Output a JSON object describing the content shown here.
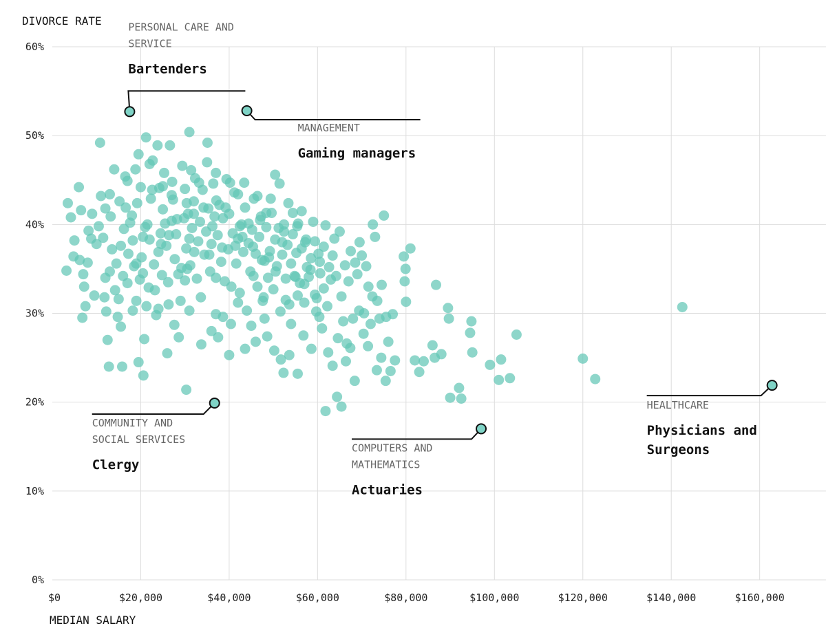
{
  "chart_data": {
    "type": "scatter",
    "ylabel": "DIVORCE RATE",
    "xlabel": "MEDIAN SALARY",
    "xlim": [
      0,
      175000
    ],
    "ylim": [
      0,
      60
    ],
    "x_ticks": [
      0,
      20000,
      40000,
      60000,
      80000,
      100000,
      120000,
      140000,
      160000
    ],
    "x_tick_labels": [
      "$0",
      "$20,000",
      "$40,000",
      "$60,000",
      "$80,000",
      "$100,000",
      "$120,000",
      "$140,000",
      "$160,000"
    ],
    "y_ticks": [
      0,
      10,
      20,
      30,
      40,
      50,
      60
    ],
    "y_tick_labels": [
      "0%",
      "10%",
      "20%",
      "30%",
      "40%",
      "50%",
      "60%"
    ],
    "grid": true,
    "point_color": "#63c6b6",
    "highlight_color": "#7fd3c6",
    "highlights": [
      {
        "category": "PERSONAL CARE AND SERVICE",
        "category_lines": [
          "PERSONAL CARE AND",
          "SERVICE"
        ],
        "name": "Bartenders",
        "name_lines": [
          "Bartenders"
        ],
        "x": 17500,
        "y": 52.7
      },
      {
        "category": "MANAGEMENT",
        "category_lines": [
          "MANAGEMENT"
        ],
        "name": "Gaming managers",
        "name_lines": [
          "Gaming managers"
        ],
        "x": 44000,
        "y": 52.8
      },
      {
        "category": "COMMUNITY AND SOCIAL SERVICES",
        "category_lines": [
          "COMMUNITY AND",
          "SOCIAL SERVICES"
        ],
        "name": "Clergy",
        "name_lines": [
          "Clergy"
        ],
        "x": 36700,
        "y": 19.9
      },
      {
        "category": "COMPUTERS AND MATHEMATICS",
        "category_lines": [
          "COMPUTERS AND",
          "MATHEMATICS"
        ],
        "name": "Actuaries",
        "name_lines": [
          "Actuaries"
        ],
        "x": 97000,
        "y": 17.0
      },
      {
        "category": "HEALTHCARE",
        "category_lines": [
          "HEALTHCARE"
        ],
        "name": "Physicians and Surgeons",
        "name_lines": [
          "Physicians and",
          "Surgeons"
        ],
        "x": 162800,
        "y": 21.9
      }
    ],
    "points": [
      [
        3500,
        42.4
      ],
      [
        4200,
        40.8
      ],
      [
        4800,
        36.4
      ],
      [
        3200,
        34.8
      ],
      [
        5000,
        38.2
      ],
      [
        6000,
        44.2
      ],
      [
        6500,
        41.6
      ],
      [
        7000,
        34.4
      ],
      [
        6800,
        29.5
      ],
      [
        7200,
        33.0
      ],
      [
        7500,
        30.8
      ],
      [
        8000,
        35.7
      ],
      [
        8200,
        39.3
      ],
      [
        9000,
        41.2
      ],
      [
        9500,
        32.0
      ],
      [
        10000,
        37.8
      ],
      [
        10500,
        39.8
      ],
      [
        10800,
        49.2
      ],
      [
        11000,
        43.2
      ],
      [
        11500,
        38.5
      ],
      [
        12000,
        34.0
      ],
      [
        12200,
        30.2
      ],
      [
        12500,
        27.0
      ],
      [
        12800,
        24.0
      ],
      [
        13000,
        43.4
      ],
      [
        13200,
        40.9
      ],
      [
        13500,
        37.2
      ],
      [
        14000,
        46.2
      ],
      [
        14200,
        32.6
      ],
      [
        14500,
        35.6
      ],
      [
        15000,
        31.6
      ],
      [
        15200,
        42.6
      ],
      [
        15500,
        28.5
      ],
      [
        15800,
        24.0
      ],
      [
        16000,
        34.2
      ],
      [
        16200,
        39.5
      ],
      [
        16500,
        45.4
      ],
      [
        17000,
        33.4
      ],
      [
        17200,
        36.7
      ],
      [
        17600,
        40.2
      ],
      [
        18000,
        41.0
      ],
      [
        18200,
        38.2
      ],
      [
        18500,
        35.3
      ],
      [
        19000,
        31.4
      ],
      [
        19200,
        42.4
      ],
      [
        19500,
        47.9
      ],
      [
        20000,
        44.2
      ],
      [
        20200,
        36.3
      ],
      [
        20500,
        34.5
      ],
      [
        20800,
        27.1
      ],
      [
        21000,
        39.7
      ],
      [
        21200,
        49.8
      ],
      [
        21500,
        40.0
      ],
      [
        21800,
        32.9
      ],
      [
        22000,
        38.3
      ],
      [
        22300,
        42.9
      ],
      [
        22700,
        47.2
      ],
      [
        23000,
        35.5
      ],
      [
        23500,
        29.8
      ],
      [
        24000,
        36.9
      ],
      [
        24200,
        44.1
      ],
      [
        24500,
        39.0
      ],
      [
        24800,
        34.3
      ],
      [
        25000,
        41.7
      ],
      [
        25300,
        45.8
      ],
      [
        25800,
        37.6
      ],
      [
        26200,
        33.5
      ],
      [
        26600,
        48.9
      ],
      [
        27000,
        40.4
      ],
      [
        27300,
        42.8
      ],
      [
        27700,
        36.1
      ],
      [
        28000,
        38.9
      ],
      [
        28500,
        34.4
      ],
      [
        29000,
        31.4
      ],
      [
        29400,
        46.6
      ],
      [
        29800,
        40.7
      ],
      [
        30000,
        44.0
      ],
      [
        30300,
        37.3
      ],
      [
        30700,
        41.2
      ],
      [
        31000,
        50.4
      ],
      [
        31200,
        35.4
      ],
      [
        31600,
        39.6
      ],
      [
        32000,
        42.6
      ],
      [
        32300,
        45.2
      ],
      [
        32700,
        33.9
      ],
      [
        33000,
        38.1
      ],
      [
        33400,
        40.3
      ],
      [
        33700,
        26.5
      ],
      [
        34000,
        43.9
      ],
      [
        34400,
        36.6
      ],
      [
        34800,
        39.2
      ],
      [
        35000,
        47.0
      ],
      [
        35300,
        41.8
      ],
      [
        35700,
        34.7
      ],
      [
        36000,
        37.8
      ],
      [
        36400,
        44.6
      ],
      [
        36700,
        40.9
      ],
      [
        37000,
        29.9
      ],
      [
        37400,
        38.8
      ],
      [
        37800,
        42.2
      ],
      [
        38200,
        35.8
      ],
      [
        38600,
        40.7
      ],
      [
        39000,
        33.6
      ],
      [
        39400,
        45.1
      ],
      [
        39800,
        37.2
      ],
      [
        40000,
        41.2
      ],
      [
        40400,
        28.8
      ],
      [
        40800,
        39.0
      ],
      [
        41200,
        43.6
      ],
      [
        41600,
        35.6
      ],
      [
        42000,
        38.4
      ],
      [
        42400,
        32.3
      ],
      [
        42800,
        40.0
      ],
      [
        43200,
        36.9
      ],
      [
        43600,
        41.9
      ],
      [
        44000,
        30.3
      ],
      [
        44400,
        37.9
      ],
      [
        44800,
        34.7
      ],
      [
        45200,
        39.4
      ],
      [
        45600,
        42.9
      ],
      [
        46000,
        36.7
      ],
      [
        46400,
        33.0
      ],
      [
        46800,
        38.6
      ],
      [
        47200,
        40.9
      ],
      [
        47600,
        31.4
      ],
      [
        48000,
        35.9
      ],
      [
        48400,
        39.7
      ],
      [
        48800,
        34.0
      ],
      [
        49200,
        37.0
      ],
      [
        49600,
        41.3
      ],
      [
        50000,
        32.7
      ],
      [
        50400,
        38.3
      ],
      [
        50800,
        35.3
      ],
      [
        51200,
        39.6
      ],
      [
        51600,
        30.2
      ],
      [
        52000,
        36.6
      ],
      [
        52400,
        40.0
      ],
      [
        52800,
        33.9
      ],
      [
        53200,
        37.7
      ],
      [
        53600,
        31.0
      ],
      [
        54000,
        35.6
      ],
      [
        54400,
        38.9
      ],
      [
        54800,
        34.2
      ],
      [
        55200,
        36.8
      ],
      [
        55600,
        40.1
      ],
      [
        56000,
        33.4
      ],
      [
        56400,
        37.3
      ],
      [
        56800,
        27.5
      ],
      [
        57200,
        38.0
      ],
      [
        57600,
        35.2
      ],
      [
        58000,
        34.1
      ],
      [
        58500,
        36.2
      ],
      [
        59000,
        40.3
      ],
      [
        59400,
        38.1
      ],
      [
        59800,
        31.7
      ],
      [
        60200,
        36.7
      ],
      [
        60600,
        34.5
      ],
      [
        61000,
        28.3
      ],
      [
        61400,
        37.5
      ],
      [
        61800,
        39.9
      ],
      [
        62200,
        30.8
      ],
      [
        62600,
        35.2
      ],
      [
        63000,
        33.8
      ],
      [
        63400,
        36.5
      ],
      [
        63800,
        38.4
      ],
      [
        64200,
        34.2
      ],
      [
        64600,
        27.2
      ],
      [
        65000,
        39.2
      ],
      [
        65400,
        31.9
      ],
      [
        65800,
        29.1
      ],
      [
        66200,
        35.4
      ],
      [
        66600,
        26.6
      ],
      [
        67000,
        33.6
      ],
      [
        67500,
        37.0
      ],
      [
        68000,
        29.4
      ],
      [
        68500,
        35.7
      ],
      [
        69000,
        34.4
      ],
      [
        69500,
        38.0
      ],
      [
        70000,
        36.5
      ],
      [
        70500,
        30.0
      ],
      [
        71000,
        35.3
      ],
      [
        71500,
        33.0
      ],
      [
        72000,
        28.8
      ],
      [
        72500,
        40.0
      ],
      [
        73000,
        38.6
      ],
      [
        73500,
        31.4
      ],
      [
        74000,
        29.4
      ],
      [
        74500,
        33.2
      ],
      [
        75000,
        41.0
      ],
      [
        75500,
        29.6
      ],
      [
        76000,
        26.8
      ],
      [
        76500,
        23.5
      ],
      [
        77000,
        29.9
      ],
      [
        77500,
        24.7
      ],
      [
        79500,
        36.4
      ],
      [
        79700,
        33.6
      ],
      [
        79900,
        35.0
      ],
      [
        80000,
        31.3
      ],
      [
        81000,
        37.3
      ],
      [
        82000,
        24.7
      ],
      [
        83000,
        23.4
      ],
      [
        84000,
        24.6
      ],
      [
        86000,
        26.4
      ],
      [
        86500,
        25.0
      ],
      [
        86800,
        33.2
      ],
      [
        88000,
        25.4
      ],
      [
        89500,
        30.6
      ],
      [
        89700,
        29.4
      ],
      [
        90000,
        20.5
      ],
      [
        92000,
        21.6
      ],
      [
        92500,
        20.4
      ],
      [
        94500,
        27.8
      ],
      [
        94800,
        29.1
      ],
      [
        95000,
        25.6
      ],
      [
        99000,
        24.2
      ],
      [
        101000,
        22.5
      ],
      [
        101500,
        24.8
      ],
      [
        103500,
        22.7
      ],
      [
        105000,
        27.6
      ],
      [
        120000,
        24.9
      ],
      [
        122800,
        22.6
      ],
      [
        142500,
        30.7
      ],
      [
        6200,
        36.0
      ],
      [
        8800,
        38.4
      ],
      [
        11800,
        31.8
      ],
      [
        14800,
        29.6
      ],
      [
        16600,
        41.9
      ],
      [
        18800,
        46.2
      ],
      [
        19800,
        33.8
      ],
      [
        21300,
        30.8
      ],
      [
        22600,
        43.9
      ],
      [
        23800,
        48.9
      ],
      [
        24600,
        37.8
      ],
      [
        26400,
        38.8
      ],
      [
        27100,
        44.8
      ],
      [
        28200,
        40.6
      ],
      [
        29200,
        35.1
      ],
      [
        30400,
        42.4
      ],
      [
        31400,
        46.1
      ],
      [
        32100,
        36.9
      ],
      [
        33200,
        44.7
      ],
      [
        34200,
        41.9
      ],
      [
        35100,
        49.2
      ],
      [
        36200,
        39.8
      ],
      [
        37100,
        42.7
      ],
      [
        38400,
        37.4
      ],
      [
        39200,
        41.9
      ],
      [
        40200,
        44.7
      ],
      [
        41400,
        37.6
      ],
      [
        42400,
        39.8
      ],
      [
        43400,
        44.7
      ],
      [
        44400,
        40.1
      ],
      [
        45400,
        37.5
      ],
      [
        46400,
        43.2
      ],
      [
        47400,
        36.0
      ],
      [
        48400,
        41.3
      ],
      [
        49400,
        42.9
      ],
      [
        50400,
        45.6
      ],
      [
        51400,
        44.6
      ],
      [
        52400,
        39.2
      ],
      [
        53400,
        42.4
      ],
      [
        54400,
        41.3
      ],
      [
        55400,
        39.8
      ],
      [
        56400,
        41.5
      ],
      [
        57400,
        38.3
      ],
      [
        58400,
        34.9
      ],
      [
        59400,
        32.1
      ],
      [
        60400,
        29.6
      ],
      [
        61400,
        32.8
      ],
      [
        62400,
        25.6
      ],
      [
        63400,
        24.1
      ],
      [
        64400,
        20.6
      ],
      [
        65400,
        19.5
      ],
      [
        66400,
        24.6
      ],
      [
        67400,
        26.1
      ],
      [
        68400,
        22.4
      ],
      [
        69400,
        30.3
      ],
      [
        70400,
        27.7
      ],
      [
        71400,
        26.3
      ],
      [
        72400,
        31.9
      ],
      [
        73400,
        23.6
      ],
      [
        74400,
        25.0
      ],
      [
        75400,
        22.4
      ],
      [
        61800,
        19.0
      ],
      [
        13000,
        34.7
      ],
      [
        18200,
        30.3
      ],
      [
        23200,
        32.6
      ],
      [
        28600,
        27.3
      ],
      [
        33600,
        31.8
      ],
      [
        38600,
        29.6
      ],
      [
        43600,
        26.0
      ],
      [
        48600,
        27.4
      ],
      [
        53600,
        25.3
      ],
      [
        58600,
        26.0
      ],
      [
        15500,
        37.6
      ],
      [
        20500,
        38.6
      ],
      [
        25500,
        40.1
      ],
      [
        30500,
        35.0
      ],
      [
        35500,
        36.6
      ],
      [
        40500,
        33.0
      ],
      [
        45500,
        34.2
      ],
      [
        50500,
        34.7
      ],
      [
        55500,
        32.0
      ],
      [
        60500,
        35.8
      ],
      [
        17000,
        44.9
      ],
      [
        22000,
        46.8
      ],
      [
        27000,
        43.3
      ],
      [
        32000,
        41.2
      ],
      [
        37000,
        45.8
      ],
      [
        42000,
        43.4
      ],
      [
        47000,
        40.5
      ],
      [
        52000,
        38.0
      ],
      [
        57000,
        33.3
      ],
      [
        12000,
        41.8
      ],
      [
        19000,
        35.6
      ],
      [
        25000,
        44.3
      ],
      [
        31000,
        38.4
      ],
      [
        37000,
        34.0
      ],
      [
        43000,
        38.6
      ],
      [
        49000,
        36.3
      ],
      [
        55000,
        34.1
      ],
      [
        24000,
        30.5
      ],
      [
        30000,
        33.7
      ],
      [
        36000,
        28.0
      ],
      [
        42000,
        31.2
      ],
      [
        48000,
        29.4
      ],
      [
        54000,
        28.8
      ],
      [
        26000,
        25.5
      ],
      [
        31000,
        30.3
      ],
      [
        37500,
        27.3
      ],
      [
        19500,
        24.5
      ],
      [
        20600,
        23.0
      ],
      [
        30300,
        21.4
      ],
      [
        40000,
        25.3
      ],
      [
        46000,
        26.8
      ],
      [
        50200,
        25.8
      ],
      [
        51700,
        24.8
      ],
      [
        52300,
        23.3
      ],
      [
        55500,
        23.2
      ],
      [
        26300,
        31.0
      ],
      [
        27600,
        28.7
      ],
      [
        45000,
        28.6
      ],
      [
        47800,
        31.8
      ],
      [
        52800,
        31.5
      ],
      [
        57000,
        31.2
      ],
      [
        59700,
        30.2
      ]
    ]
  }
}
